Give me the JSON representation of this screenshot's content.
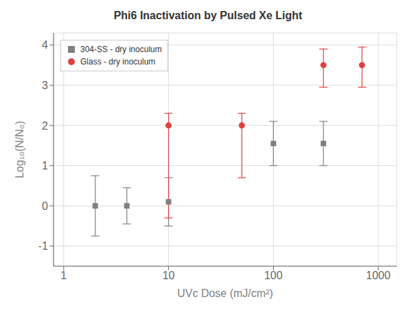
{
  "chart_data": {
    "type": "scatter",
    "title": "Phi6 Inactivation by Pulsed Xe Light",
    "x_label": "UVc Dose (mJ/cm²)",
    "y_label": "Log₁₀(N/N₀)",
    "log": "x",
    "xlim": [
      0.8,
      1500
    ],
    "ylim": [
      -1.5,
      4.3
    ],
    "xticks": [
      1,
      10,
      100,
      1000
    ],
    "yticks": [
      -1,
      0,
      1,
      2,
      3,
      4
    ],
    "grid": true,
    "legend": "upper left",
    "series": [
      {
        "name": "304-SS - dry inoculum",
        "color": "#808080",
        "marker": "square",
        "x": [
          2,
          4,
          10,
          100,
          300
        ],
        "values": [
          0.0,
          0.0,
          0.1,
          1.55,
          1.55
        ],
        "error_low": [
          0.75,
          0.45,
          0.6,
          0.55,
          0.55
        ],
        "error_high": [
          0.75,
          0.45,
          0.6,
          0.55,
          0.55
        ]
      },
      {
        "name": "Glass - dry inoculum",
        "color": "#e04040",
        "marker": "circle",
        "x": [
          10,
          50,
          300,
          700
        ],
        "values": [
          2.0,
          2.0,
          3.5,
          3.5
        ],
        "error_low": [
          2.3,
          1.3,
          0.55,
          0.55
        ],
        "error_high": [
          0.3,
          0.3,
          0.4,
          0.45
        ]
      }
    ]
  }
}
